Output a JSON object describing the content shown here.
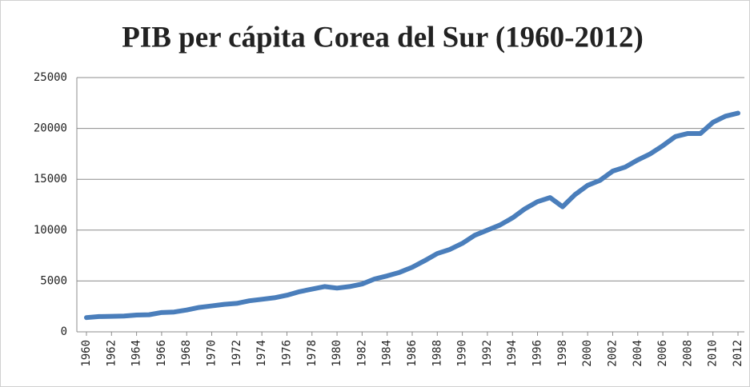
{
  "chart_data": {
    "type": "line",
    "title": "PIB per cápita Corea del Sur (1960-2012)",
    "x": [
      1960,
      1961,
      1962,
      1963,
      1964,
      1965,
      1966,
      1967,
      1968,
      1969,
      1970,
      1971,
      1972,
      1973,
      1974,
      1975,
      1976,
      1977,
      1978,
      1979,
      1980,
      1981,
      1982,
      1983,
      1984,
      1985,
      1986,
      1987,
      1988,
      1989,
      1990,
      1991,
      1992,
      1993,
      1994,
      1995,
      1996,
      1997,
      1998,
      1999,
      2000,
      2001,
      2002,
      2003,
      2004,
      2005,
      2006,
      2007,
      2008,
      2009,
      2010,
      2011,
      2012
    ],
    "series": [
      {
        "name": "PIB per cápita",
        "color": "#4a7ebb",
        "values": [
          1400,
          1500,
          1520,
          1550,
          1650,
          1680,
          1900,
          1950,
          2150,
          2400,
          2550,
          2700,
          2800,
          3050,
          3200,
          3350,
          3600,
          3950,
          4200,
          4450,
          4300,
          4450,
          4700,
          5200,
          5500,
          5850,
          6350,
          7000,
          7700,
          8100,
          8700,
          9500,
          10000,
          10500,
          11200,
          12100,
          12800,
          13200,
          12300,
          13500,
          14400,
          14900,
          15800,
          16200,
          16900,
          17500,
          18300,
          19200,
          19500,
          19500,
          20600,
          21200,
          21500
        ]
      }
    ],
    "xlim": [
      1960,
      2012
    ],
    "xticks": [
      1960,
      1962,
      1964,
      1966,
      1968,
      1970,
      1972,
      1974,
      1976,
      1978,
      1980,
      1982,
      1984,
      1986,
      1988,
      1990,
      1992,
      1994,
      1996,
      1998,
      2000,
      2002,
      2004,
      2006,
      2008,
      2010,
      2012
    ],
    "ylim": [
      0,
      25000
    ],
    "yticks": [
      0,
      5000,
      10000,
      15000,
      20000,
      25000
    ],
    "grid": true,
    "legend": false
  }
}
